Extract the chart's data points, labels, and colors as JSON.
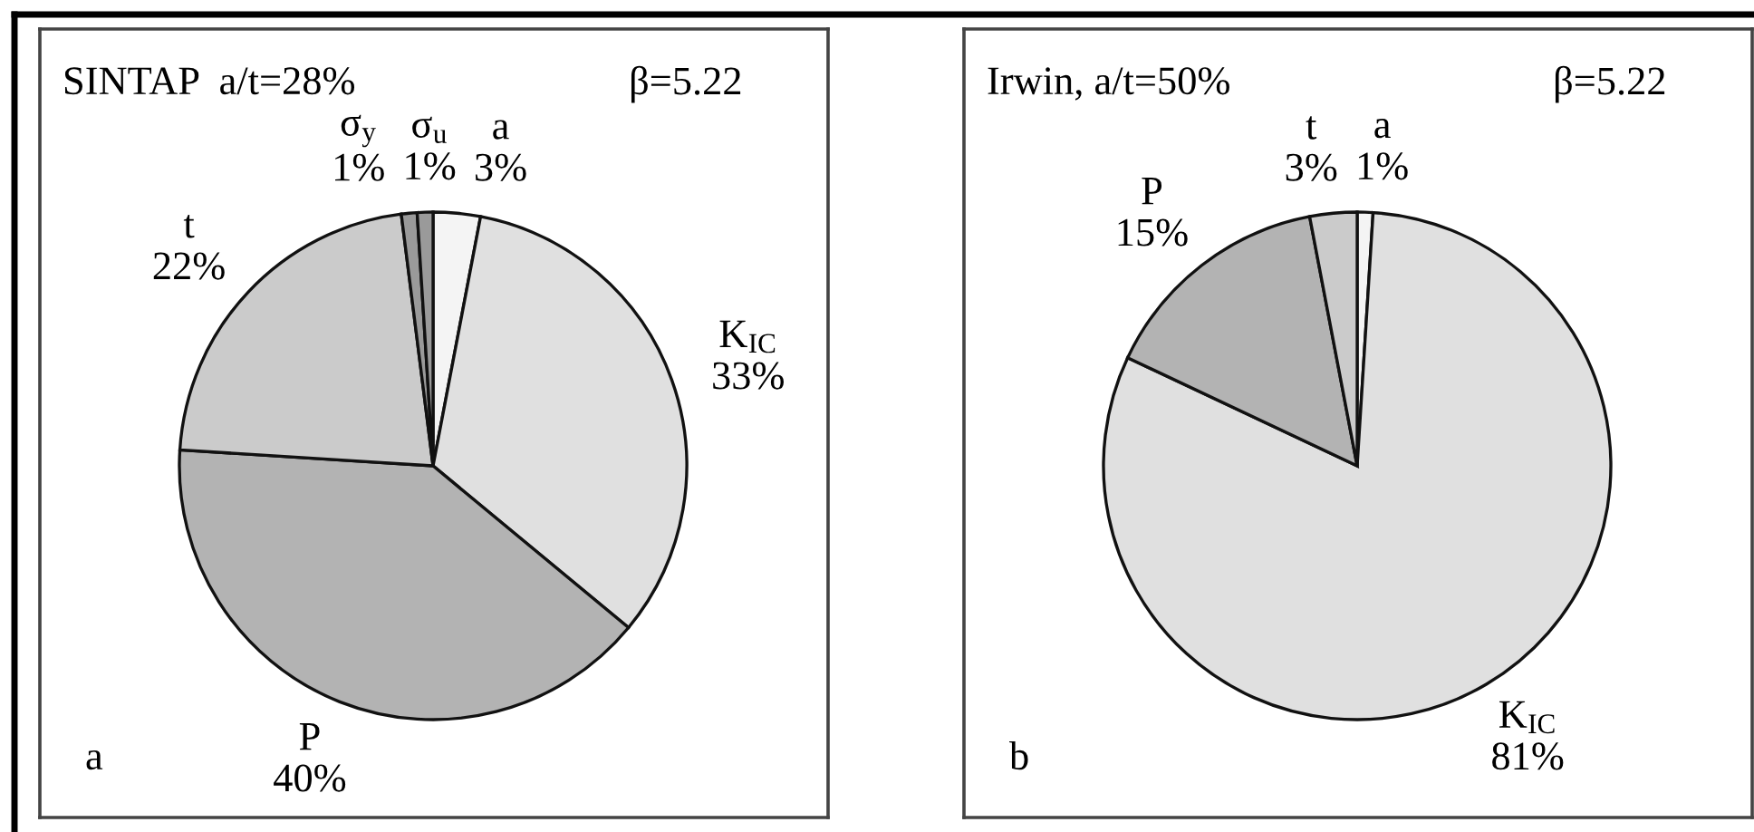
{
  "chart_data": [
    {
      "type": "pie",
      "title": "SINTAP  a/t=28%",
      "subtitle": "β=5.22",
      "annotations": [
        "a"
      ],
      "categories": [
        "a",
        "K$_{IC}$",
        "P",
        "t",
        "σ$_{y}$",
        "σ$_{u}$"
      ],
      "values": [
        3,
        33,
        40,
        22,
        1,
        1
      ],
      "value_labels": [
        "3%",
        "33%",
        "40%",
        "22%",
        "1%",
        "1%"
      ],
      "colors": [
        "#f4f4f4",
        "#e0e0e0",
        "#b3b3b3",
        "#cbcbcb",
        "#9a9a9a",
        "#9a9a9a"
      ]
    },
    {
      "type": "pie",
      "title": "Irwin, a/t=50%",
      "subtitle": "β=5.22",
      "annotations": [
        "b"
      ],
      "categories": [
        "a",
        "K$_{IC}$",
        "P",
        "t"
      ],
      "values": [
        1,
        81,
        15,
        3
      ],
      "value_labels": [
        "1%",
        "81%",
        "15%",
        "3%"
      ],
      "colors": [
        "#f4f4f4",
        "#e0e0e0",
        "#b3b3b3",
        "#cbcbcb"
      ]
    }
  ]
}
